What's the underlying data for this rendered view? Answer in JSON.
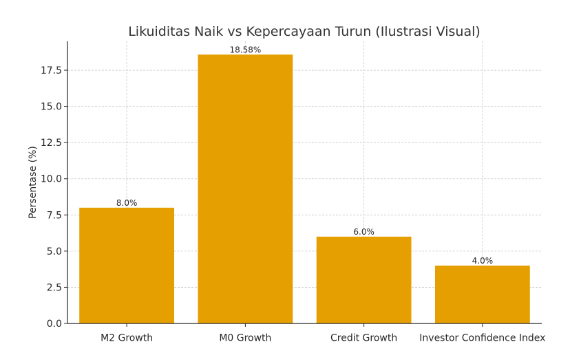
{
  "chart_data": {
    "type": "bar",
    "title": "Likuiditas Naik vs Kepercayaan Turun (Ilustrasi Visual)",
    "xlabel": "",
    "ylabel": "Persentase (%)",
    "categories": [
      "M2 Growth",
      "M0 Growth",
      "Credit Growth",
      "Investor Confidence Index"
    ],
    "values": [
      8.0,
      18.58,
      6.0,
      4.0
    ],
    "data_labels": [
      "8.0%",
      "18.58%",
      "6.0%",
      "4.0%"
    ],
    "ylim": [
      0,
      19.5
    ],
    "yticks": [
      0.0,
      2.5,
      5.0,
      7.5,
      10.0,
      12.5,
      15.0,
      17.5
    ],
    "ytick_labels": [
      "0.0",
      "2.5",
      "5.0",
      "7.5",
      "10.0",
      "12.5",
      "15.0",
      "17.5"
    ],
    "bar_color": "#E69F00",
    "grid": true,
    "legend": "none"
  }
}
